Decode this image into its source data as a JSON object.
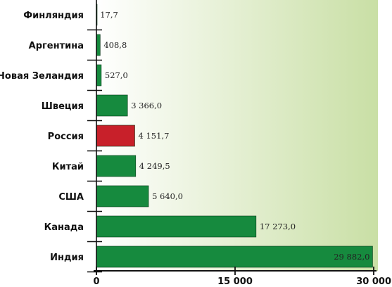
{
  "chart_data": {
    "type": "bar",
    "orientation": "horizontal",
    "categories": [
      "Финляндия",
      "Аргентина",
      "Новая Зеландия",
      "Швеция",
      "Россия",
      "Китай",
      "США",
      "Канада",
      "Индия"
    ],
    "values": [
      17.7,
      408.8,
      527.0,
      3366.0,
      4151.7,
      4249.5,
      5640.0,
      17273.0,
      29882.0
    ],
    "value_labels": [
      "17,7",
      "408,8",
      "527,0",
      "3 366,0",
      "4 151,7",
      "4 249,5",
      "5 640,0",
      "17 273,0",
      "29 882,0"
    ],
    "xlim": [
      0,
      30000
    ],
    "xticks": [
      0,
      15000,
      30000
    ],
    "xtick_labels": [
      "0",
      "15 000",
      "30 000"
    ],
    "title": "",
    "xlabel": "",
    "ylabel": "",
    "grid": false,
    "colors": {
      "bar": "#168a3e",
      "highlight": "#c8202a",
      "highlight_category": "Россия",
      "background_from": "#ffffff",
      "background_to": "#c9dfa5"
    }
  }
}
